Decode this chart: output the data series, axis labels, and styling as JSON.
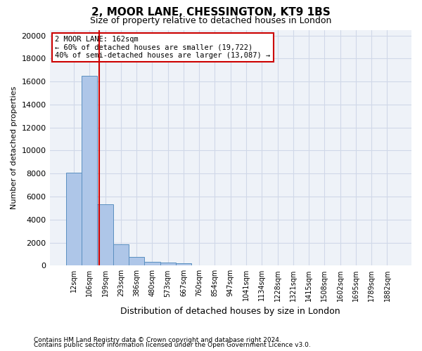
{
  "title_line1": "2, MOOR LANE, CHESSINGTON, KT9 1BS",
  "title_line2": "Size of property relative to detached houses in London",
  "xlabel": "Distribution of detached houses by size in London",
  "ylabel": "Number of detached properties",
  "bar_values": [
    8100,
    16500,
    5350,
    1850,
    750,
    350,
    270,
    200,
    0,
    0,
    0,
    0,
    0,
    0,
    0,
    0,
    0,
    0,
    0,
    0,
    0
  ],
  "bar_labels": [
    "12sqm",
    "106sqm",
    "199sqm",
    "293sqm",
    "386sqm",
    "480sqm",
    "573sqm",
    "667sqm",
    "760sqm",
    "854sqm",
    "947sqm",
    "1041sqm",
    "1134sqm",
    "1228sqm",
    "1321sqm",
    "1415sqm",
    "1508sqm",
    "1602sqm",
    "1695sqm",
    "1789sqm",
    "1882sqm"
  ],
  "bar_color": "#aec6e8",
  "bar_edge_color": "#5a8fc0",
  "grid_color": "#d0d8e8",
  "background_color": "#eef2f8",
  "vline_x": 1.62,
  "vline_color": "#cc0000",
  "annotation_text": "2 MOOR LANE: 162sqm\n← 60% of detached houses are smaller (19,722)\n40% of semi-detached houses are larger (13,087) →",
  "annotation_box_color": "#ffffff",
  "annotation_box_edge": "#cc0000",
  "ylim": [
    0,
    20500
  ],
  "yticks": [
    0,
    2000,
    4000,
    6000,
    8000,
    10000,
    12000,
    14000,
    16000,
    18000,
    20000
  ],
  "footnote1": "Contains HM Land Registry data © Crown copyright and database right 2024.",
  "footnote2": "Contains public sector information licensed under the Open Government Licence v3.0."
}
